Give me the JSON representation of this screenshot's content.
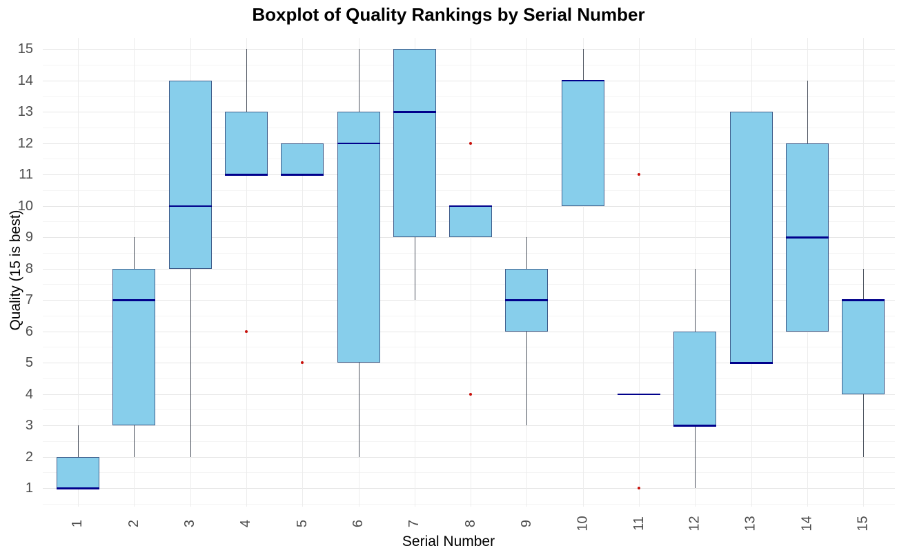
{
  "chart_data": {
    "type": "boxplot",
    "title": "Boxplot of Quality Rankings by Serial Number",
    "xlabel": "Serial Number",
    "ylabel": "Quality (15 is best)",
    "x_tick_labels": [
      "1",
      "2",
      "3",
      "4",
      "5",
      "6",
      "7",
      "8",
      "9",
      "10",
      "11",
      "12",
      "13",
      "14",
      "15"
    ],
    "y_tick_labels": [
      "1",
      "2",
      "3",
      "4",
      "5",
      "6",
      "7",
      "8",
      "9",
      "10",
      "11",
      "12",
      "13",
      "14",
      "15"
    ],
    "y_tick_values": [
      1,
      2,
      3,
      4,
      5,
      6,
      7,
      8,
      9,
      10,
      11,
      12,
      13,
      14,
      15
    ],
    "ylim": [
      0.4,
      15.36
    ],
    "grid": {
      "horizontal_major": true,
      "horizontal_minor": true,
      "vertical_major": true,
      "legend": "none"
    },
    "series": [
      {
        "serial": "1",
        "whisker_min": 1,
        "q1": 1,
        "median": 1,
        "q3": 2,
        "whisker_max": 3,
        "outliers": []
      },
      {
        "serial": "2",
        "whisker_min": 2,
        "q1": 3,
        "median": 7,
        "q3": 8,
        "whisker_max": 9,
        "outliers": []
      },
      {
        "serial": "3",
        "whisker_min": 2,
        "q1": 8,
        "median": 10,
        "q3": 14,
        "whisker_max": 14,
        "outliers": []
      },
      {
        "serial": "4",
        "whisker_min": 11,
        "q1": 11,
        "median": 11,
        "q3": 13,
        "whisker_max": 15,
        "outliers": [
          6
        ]
      },
      {
        "serial": "5",
        "whisker_min": 11,
        "q1": 11,
        "median": 11,
        "q3": 12,
        "whisker_max": 12,
        "outliers": [
          5
        ]
      },
      {
        "serial": "6",
        "whisker_min": 2,
        "q1": 5,
        "median": 12,
        "q3": 13,
        "whisker_max": 15,
        "outliers": []
      },
      {
        "serial": "7",
        "whisker_min": 7,
        "q1": 9,
        "median": 13,
        "q3": 15,
        "whisker_max": 15,
        "outliers": []
      },
      {
        "serial": "8",
        "whisker_min": 9,
        "q1": 9,
        "median": 10,
        "q3": 10,
        "whisker_max": 10,
        "outliers": [
          12,
          4
        ]
      },
      {
        "serial": "9",
        "whisker_min": 3,
        "q1": 6,
        "median": 7,
        "q3": 8,
        "whisker_max": 9,
        "outliers": []
      },
      {
        "serial": "10",
        "whisker_min": 10,
        "q1": 10,
        "median": 14,
        "q3": 14,
        "whisker_max": 15,
        "outliers": []
      },
      {
        "serial": "11",
        "whisker_min": 4,
        "q1": 4,
        "median": 4,
        "q3": 4,
        "whisker_max": 4,
        "outliers": [
          11,
          1
        ]
      },
      {
        "serial": "12",
        "whisker_min": 1,
        "q1": 3,
        "median": 3,
        "q3": 6,
        "whisker_max": 8,
        "outliers": []
      },
      {
        "serial": "13",
        "whisker_min": 5,
        "q1": 5,
        "median": 5,
        "q3": 13,
        "whisker_max": 13,
        "outliers": []
      },
      {
        "serial": "14",
        "whisker_min": 6,
        "q1": 6,
        "median": 9,
        "q3": 12,
        "whisker_max": 14,
        "outliers": []
      },
      {
        "serial": "15",
        "whisker_min": 2,
        "q1": 4,
        "median": 7,
        "q3": 7,
        "whisker_max": 8,
        "outliers": []
      }
    ],
    "colors": {
      "box_fill": "#87CEEB",
      "box_border": "#3E5C8A",
      "median": "#00008B",
      "whisker": "#474E5A",
      "outlier": "#C8100A",
      "grid_major": "#E6E6E6",
      "grid_minor": "#F4F4F4",
      "grid_vertical": "#ECECEC",
      "tick_text": "#4D4D4D",
      "title_text": "#000000",
      "background": "#FFFFFF"
    }
  }
}
